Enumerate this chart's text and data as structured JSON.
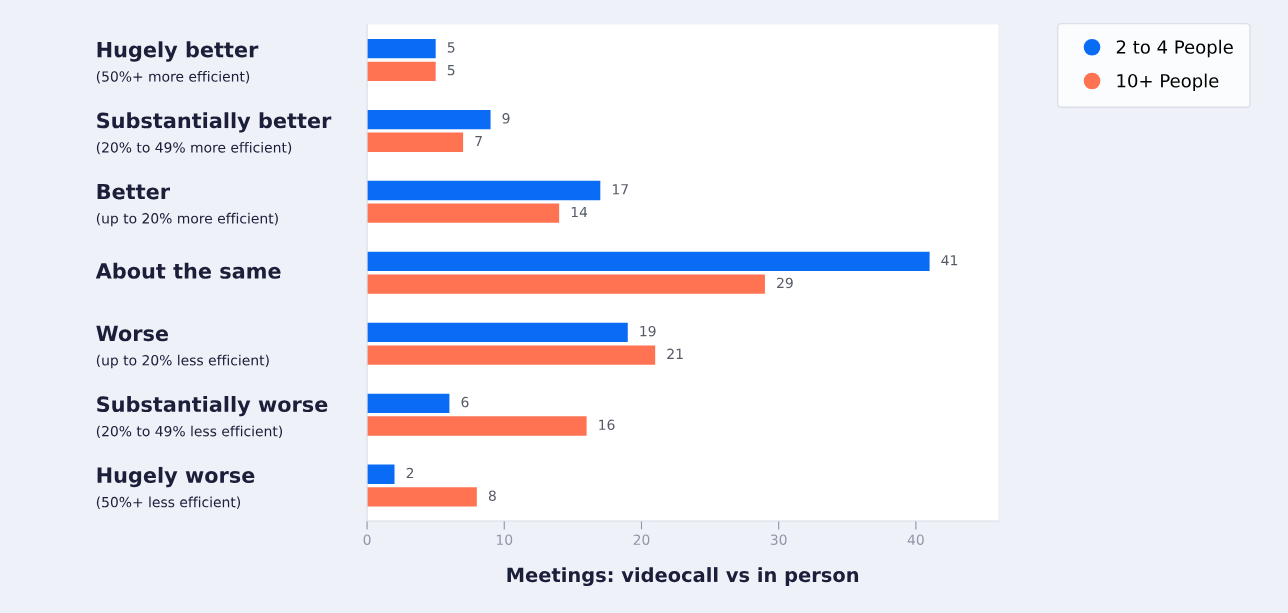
{
  "chart_data": {
    "type": "bar",
    "orientation": "horizontal",
    "xlabel": "Meetings: videocall vs in person",
    "categories": [
      "Hugely better\n(50%+ more efficient)",
      "Substantially better\n(20% to 49% more efficient)",
      "Better\n(up to 20% more efficient)",
      "About the same",
      "Worse\n(up to 20% less efficient)",
      "Substantially worse\n(20% to 49% less efficient)",
      "Hugely worse\n(50%+ less efficient)"
    ],
    "series": [
      {
        "name": "2 to 4 People",
        "color": "#0a6cf5",
        "values": [
          5,
          9,
          17,
          41,
          19,
          6,
          2
        ]
      },
      {
        "name": "10+ People",
        "color": "#ff7353",
        "values": [
          5,
          7,
          14,
          29,
          21,
          16,
          8
        ]
      }
    ],
    "xlim": [
      0,
      46
    ],
    "xticks": [
      0,
      10,
      20,
      30,
      40
    ],
    "data_labels": true,
    "legend": "top right",
    "grid": false
  }
}
